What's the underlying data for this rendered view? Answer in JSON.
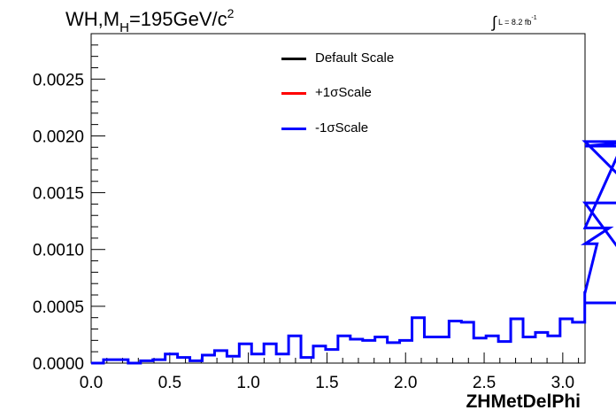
{
  "colors": {
    "default": "#000000",
    "plus": "#ff0000",
    "minus": "#0000ff"
  },
  "title": {
    "main": "WH,M",
    "sub": "H",
    "rest": "=195GeV/c",
    "sup": "2"
  },
  "lumi": {
    "integral": "∫",
    "text": "L = 8.2 fb",
    "sup": "-1"
  },
  "legend": [
    {
      "label": "Default Scale",
      "color": "#000000"
    },
    {
      "label": "+1σScale",
      "color": "#ff0000"
    },
    {
      "label": "-1σScale",
      "color": "#0000ff"
    }
  ],
  "chart_data": {
    "type": "step-histogram",
    "xlabel": "ZHMetDelPhi",
    "ylabel": "",
    "xlim": [
      0,
      3.14159
    ],
    "ylim": [
      0,
      0.0029
    ],
    "xticks": [
      "0.0",
      "0.5",
      "1.0",
      "1.5",
      "2.0",
      "2.5",
      "3.0"
    ],
    "xtick_values": [
      0,
      0.5,
      1.0,
      1.5,
      2.0,
      2.5,
      3.0
    ],
    "yticks": [
      "0.0000",
      "0.0005",
      "0.0010",
      "0.0015",
      "0.0020",
      "0.0025"
    ],
    "ytick_values": [
      0,
      0.0005,
      0.001,
      0.0015,
      0.002,
      0.0025
    ],
    "bin_edges_start": 0,
    "bin_width": 0.0785,
    "series": [
      {
        "name": "-1σScale",
        "color": "#0000ff",
        "values": [
          0.0,
          3e-05,
          3e-05,
          0.0,
          2e-05,
          3e-05,
          8e-05,
          5e-05,
          2e-05,
          7e-05,
          0.00011,
          6e-05,
          0.00017,
          8e-05,
          0.00017,
          8e-05,
          0.00024,
          5e-05,
          0.00015,
          0.00012,
          0.00024,
          0.00021,
          0.0002,
          0.00023,
          0.00018,
          0.0002,
          0.0004,
          0.00023,
          0.00023,
          0.00037,
          0.00036,
          0.00022,
          0.00024,
          0.00019,
          0.00039,
          0.00023,
          0.00027,
          0.00024,
          0.00039,
          0.00036,
          0.00062,
          0.00105,
          0.00119,
          0.00191,
          0.00195,
          0.00141,
          0.00053
        ]
      }
    ]
  }
}
